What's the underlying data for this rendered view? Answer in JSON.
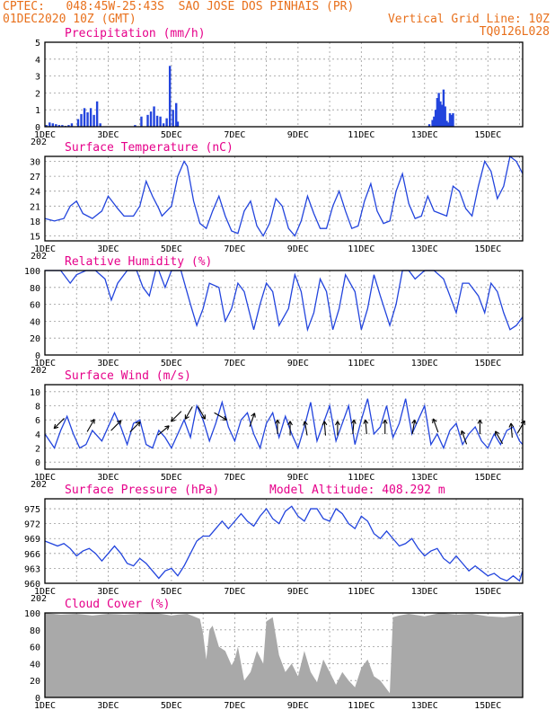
{
  "header": {
    "left_line1": "CPTEC:   048:45W-25:43S  SAO JOSE DOS PINHAIS (PR)",
    "left_line2": "01DEC2020 10Z (GMT)",
    "right_line2": "Vertical Grid Line: 10Z",
    "right_line3": "TQ0126L028"
  },
  "x_tick_labels": [
    "1DEC",
    "3DEC",
    "5DEC",
    "7DEC",
    "9DEC",
    "11DEC",
    "13DEC",
    "15DEC"
  ],
  "year_fragment": "202",
  "colors": {
    "header": "#e8701c",
    "titles": "#e6008a",
    "series": "#2244dd",
    "cloud": "#a9a9a9",
    "arrows": "#000000"
  },
  "chart_data": [
    {
      "type": "bar",
      "title": "Precipitation (mm/h)",
      "ylim": [
        0,
        5
      ],
      "yticks": [
        0,
        1,
        2,
        3,
        4,
        5
      ],
      "xlim_days": [
        0,
        15.1
      ],
      "x": [
        0.05,
        0.15,
        0.25,
        0.35,
        0.45,
        0.55,
        0.65,
        0.75,
        0.85,
        1.05,
        1.15,
        1.25,
        1.35,
        1.45,
        1.55,
        1.65,
        1.75,
        2.85,
        3.05,
        3.25,
        3.35,
        3.45,
        3.55,
        3.65,
        3.75,
        3.85,
        3.95,
        4.05,
        4.15,
        4.2,
        12.15,
        12.25,
        12.3,
        12.35,
        12.4,
        12.45,
        12.5,
        12.55,
        12.6,
        12.65,
        12.7,
        12.75,
        12.8,
        12.85,
        12.9
      ],
      "values": [
        0.1,
        0.25,
        0.2,
        0.15,
        0.1,
        0.1,
        0.05,
        0.1,
        0.2,
        0.45,
        0.75,
        1.1,
        0.85,
        1.1,
        0.7,
        1.5,
        0.2,
        0.1,
        0.6,
        0.7,
        0.9,
        1.2,
        0.65,
        0.6,
        0.2,
        0.5,
        3.6,
        1.0,
        1.4,
        0.3,
        0.15,
        0.4,
        0.6,
        1.0,
        1.7,
        2.0,
        1.5,
        1.3,
        2.2,
        1.2,
        0.35,
        0.25,
        0.8,
        0.7,
        0.8
      ]
    },
    {
      "type": "line",
      "title": "Surface Temperature (nC)",
      "ylim": [
        14,
        31
      ],
      "yticks": [
        15,
        18,
        21,
        24,
        27,
        30
      ],
      "xlim_days": [
        0,
        15.1
      ],
      "x": [
        0,
        0.3,
        0.6,
        0.8,
        1.0,
        1.2,
        1.5,
        1.8,
        2.0,
        2.3,
        2.5,
        2.8,
        3.0,
        3.2,
        3.4,
        3.6,
        3.7,
        4.0,
        4.2,
        4.4,
        4.5,
        4.7,
        4.9,
        5.1,
        5.3,
        5.5,
        5.7,
        5.9,
        6.1,
        6.3,
        6.5,
        6.7,
        6.9,
        7.1,
        7.3,
        7.5,
        7.7,
        7.9,
        8.1,
        8.3,
        8.5,
        8.7,
        8.9,
        9.1,
        9.3,
        9.5,
        9.7,
        9.9,
        10.1,
        10.3,
        10.5,
        10.7,
        10.9,
        11.1,
        11.3,
        11.5,
        11.7,
        11.9,
        12.1,
        12.3,
        12.5,
        12.7,
        12.9,
        13.1,
        13.3,
        13.5,
        13.7,
        13.9,
        14.1,
        14.3,
        14.5,
        14.7,
        14.9,
        15.1
      ],
      "values": [
        18.5,
        18.0,
        18.5,
        21.0,
        22.0,
        19.5,
        18.5,
        20.0,
        23.0,
        20.5,
        19.0,
        19.0,
        21.0,
        26.0,
        23.0,
        20.5,
        19.0,
        21.0,
        27.0,
        30.0,
        29.0,
        22.0,
        17.5,
        16.5,
        20.0,
        23.0,
        19.0,
        16.0,
        15.5,
        20.0,
        22.0,
        17.0,
        15.0,
        17.5,
        22.5,
        21.0,
        16.5,
        15.0,
        18.0,
        23.0,
        19.5,
        16.5,
        16.5,
        21.0,
        24.0,
        20.0,
        16.5,
        17.0,
        22.0,
        25.5,
        20.0,
        17.5,
        18.0,
        24.0,
        27.5,
        21.5,
        18.5,
        19.0,
        23.0,
        20.0,
        19.5,
        19.0,
        25.0,
        24.0,
        20.5,
        19.0,
        25.0,
        30.0,
        28.0,
        22.5,
        25.0,
        31.0,
        30.0,
        27.5
      ]
    },
    {
      "type": "line",
      "title": "Relative Humidity (%)",
      "ylim": [
        0,
        100
      ],
      "yticks": [
        0,
        20,
        40,
        60,
        80,
        100
      ],
      "xlim_days": [
        0,
        15.1
      ],
      "x": [
        0,
        0.5,
        0.8,
        1.0,
        1.3,
        1.6,
        1.9,
        2.1,
        2.3,
        2.6,
        2.9,
        3.1,
        3.3,
        3.5,
        3.6,
        3.8,
        4.0,
        4.3,
        4.6,
        4.8,
        5.0,
        5.2,
        5.5,
        5.7,
        5.9,
        6.1,
        6.3,
        6.6,
        6.8,
        7.0,
        7.2,
        7.4,
        7.7,
        7.9,
        8.1,
        8.3,
        8.5,
        8.7,
        8.9,
        9.1,
        9.3,
        9.5,
        9.8,
        10.0,
        10.2,
        10.4,
        10.6,
        10.9,
        11.1,
        11.3,
        11.5,
        11.7,
        12.0,
        12.3,
        12.6,
        12.8,
        13.0,
        13.2,
        13.4,
        13.7,
        13.9,
        14.1,
        14.3,
        14.5,
        14.7,
        14.9,
        15.1
      ],
      "values": [
        100,
        100,
        85,
        95,
        100,
        100,
        90,
        65,
        85,
        100,
        100,
        80,
        70,
        100,
        100,
        80,
        100,
        100,
        60,
        35,
        55,
        85,
        80,
        40,
        55,
        85,
        75,
        30,
        60,
        85,
        75,
        35,
        55,
        95,
        75,
        30,
        50,
        90,
        75,
        30,
        55,
        95,
        75,
        30,
        55,
        95,
        70,
        35,
        60,
        100,
        100,
        90,
        100,
        100,
        90,
        70,
        50,
        85,
        85,
        70,
        50,
        85,
        75,
        50,
        30,
        35,
        45
      ]
    },
    {
      "type": "line",
      "title": "Surface Wind (m/s)",
      "ylim": [
        -1,
        11
      ],
      "yticks": [
        0,
        2,
        4,
        6,
        8,
        10
      ],
      "xlim_days": [
        0,
        15.1
      ],
      "x": [
        0,
        0.3,
        0.5,
        0.7,
        0.9,
        1.1,
        1.3,
        1.5,
        1.8,
        2.0,
        2.2,
        2.4,
        2.6,
        2.8,
        3.0,
        3.2,
        3.4,
        3.6,
        3.8,
        4.0,
        4.2,
        4.4,
        4.6,
        4.8,
        5.0,
        5.2,
        5.4,
        5.6,
        5.8,
        6.0,
        6.2,
        6.4,
        6.6,
        6.8,
        7.0,
        7.2,
        7.4,
        7.6,
        7.8,
        8.0,
        8.2,
        8.4,
        8.6,
        8.8,
        9.0,
        9.2,
        9.4,
        9.6,
        9.8,
        10.0,
        10.2,
        10.4,
        10.6,
        10.8,
        11.0,
        11.2,
        11.4,
        11.6,
        11.8,
        12.0,
        12.2,
        12.4,
        12.6,
        12.8,
        13.0,
        13.2,
        13.4,
        13.6,
        13.8,
        14.0,
        14.2,
        14.4,
        14.6,
        14.8,
        15.0,
        15.1
      ],
      "values": [
        4.0,
        2.0,
        4.5,
        6.5,
        4.0,
        2.0,
        2.5,
        4.5,
        3.0,
        5.0,
        7.0,
        5.0,
        2.5,
        5.5,
        6.0,
        2.5,
        2.0,
        4.5,
        3.5,
        2.0,
        4.0,
        6.0,
        3.5,
        8.0,
        6.0,
        3.0,
        5.5,
        8.5,
        5.0,
        3.0,
        6.0,
        7.0,
        4.0,
        2.0,
        5.5,
        7.0,
        3.5,
        6.5,
        4.0,
        2.0,
        5.0,
        8.5,
        3.0,
        5.5,
        8.0,
        3.0,
        5.5,
        8.0,
        2.5,
        6.0,
        9.0,
        4.0,
        5.0,
        8.0,
        3.5,
        5.5,
        9.0,
        4.0,
        6.0,
        8.0,
        2.5,
        4.0,
        2.0,
        4.5,
        5.5,
        2.5,
        4.0,
        5.0,
        3.0,
        2.0,
        4.0,
        2.5,
        4.5,
        5.0,
        3.0,
        2.5
      ],
      "arrow_days": [
        0.45,
        1.45,
        2.25,
        2.85,
        3.75,
        4.15,
        4.55,
        4.95,
        5.55,
        6.55,
        7.35,
        7.75,
        8.25,
        8.85,
        9.25,
        9.75,
        10.15,
        10.75,
        11.65,
        12.35,
        13.25,
        13.75,
        14.35,
        14.75,
        15.05
      ],
      "arrow_values": [
        5.5,
        5.2,
        5.2,
        5.0,
        4.5,
        6.5,
        7.0,
        7.0,
        6.5,
        6.0,
        5.0,
        4.8,
        4.8,
        4.8,
        4.8,
        5.0,
        5.0,
        5.0,
        5.0,
        5.2,
        3.5,
        5.0,
        3.5,
        4.5,
        5.0
      ],
      "arrow_directions_deg": [
        225,
        60,
        45,
        45,
        40,
        225,
        240,
        300,
        330,
        70,
        90,
        90,
        100,
        95,
        90,
        85,
        95,
        90,
        80,
        110,
        110,
        90,
        120,
        95,
        60
      ]
    },
    {
      "type": "line",
      "title": "Surface Pressure (hPa)",
      "annotation": "Model Altitude: 408.292 m",
      "ylim": [
        960,
        977
      ],
      "yticks": [
        960,
        963,
        966,
        969,
        972,
        975
      ],
      "xlim_days": [
        0,
        15.1
      ],
      "x": [
        0,
        0.2,
        0.4,
        0.6,
        0.8,
        1.0,
        1.2,
        1.4,
        1.6,
        1.8,
        2.0,
        2.2,
        2.4,
        2.6,
        2.8,
        3.0,
        3.2,
        3.4,
        3.6,
        3.8,
        4.0,
        4.2,
        4.4,
        4.6,
        4.8,
        5.0,
        5.2,
        5.4,
        5.6,
        5.8,
        6.0,
        6.2,
        6.4,
        6.6,
        6.8,
        7.0,
        7.2,
        7.4,
        7.6,
        7.8,
        8.0,
        8.2,
        8.4,
        8.6,
        8.8,
        9.0,
        9.2,
        9.4,
        9.6,
        9.8,
        10.0,
        10.2,
        10.4,
        10.6,
        10.8,
        11.0,
        11.2,
        11.4,
        11.6,
        11.8,
        12.0,
        12.2,
        12.4,
        12.6,
        12.8,
        13.0,
        13.2,
        13.4,
        13.6,
        13.8,
        14.0,
        14.2,
        14.4,
        14.6,
        14.8,
        15.0,
        15.1
      ],
      "values": [
        968.5,
        968.0,
        967.5,
        968.0,
        967.0,
        965.5,
        966.5,
        967.0,
        966.0,
        964.5,
        966.0,
        967.5,
        966.0,
        964.0,
        963.5,
        965.0,
        964.0,
        962.5,
        961.0,
        962.5,
        963.0,
        961.5,
        963.5,
        966.0,
        968.5,
        969.5,
        969.5,
        971.0,
        972.5,
        971.0,
        972.5,
        974.0,
        972.5,
        971.5,
        973.5,
        975.0,
        973.0,
        972.0,
        974.5,
        975.5,
        973.5,
        972.5,
        975.0,
        975.0,
        973.0,
        972.5,
        975.0,
        974.0,
        972.0,
        971.0,
        973.5,
        972.5,
        970.0,
        969.0,
        970.5,
        969.0,
        967.5,
        968.0,
        969.0,
        967.0,
        965.5,
        966.5,
        967.0,
        965.0,
        964.0,
        965.5,
        964.0,
        962.5,
        963.5,
        962.5,
        961.5,
        962.0,
        961.0,
        960.5,
        961.5,
        960.5,
        962.5
      ]
    },
    {
      "type": "area",
      "title": "Cloud Cover (%)",
      "ylim": [
        0,
        100
      ],
      "yticks": [
        0,
        20,
        40,
        60,
        80,
        100
      ],
      "xlim_days": [
        0,
        15.1
      ],
      "x": [
        0,
        0.5,
        1.0,
        1.5,
        2.0,
        2.5,
        3.0,
        3.5,
        4.0,
        4.2,
        4.5,
        4.7,
        4.9,
        5.0,
        5.1,
        5.2,
        5.3,
        5.5,
        5.7,
        5.9,
        6.0,
        6.1,
        6.3,
        6.5,
        6.7,
        6.9,
        7.0,
        7.2,
        7.4,
        7.6,
        7.8,
        8.0,
        8.2,
        8.4,
        8.6,
        8.8,
        9.0,
        9.2,
        9.4,
        9.6,
        9.8,
        10.0,
        10.2,
        10.4,
        10.6,
        10.8,
        10.9,
        11.0,
        11.2,
        11.5,
        12.0,
        12.5,
        13.0,
        13.5,
        14.0,
        14.5,
        15.0,
        15.1
      ],
      "values": [
        100,
        98,
        99,
        97,
        99,
        98,
        99,
        100,
        97,
        98,
        99,
        96,
        93,
        75,
        45,
        80,
        85,
        60,
        55,
        38,
        45,
        60,
        20,
        30,
        55,
        40,
        90,
        95,
        50,
        30,
        40,
        25,
        55,
        30,
        18,
        45,
        30,
        15,
        30,
        20,
        12,
        35,
        45,
        25,
        20,
        10,
        5,
        95,
        97,
        99,
        96,
        100,
        98,
        99,
        96,
        95,
        97,
        99
      ]
    }
  ]
}
